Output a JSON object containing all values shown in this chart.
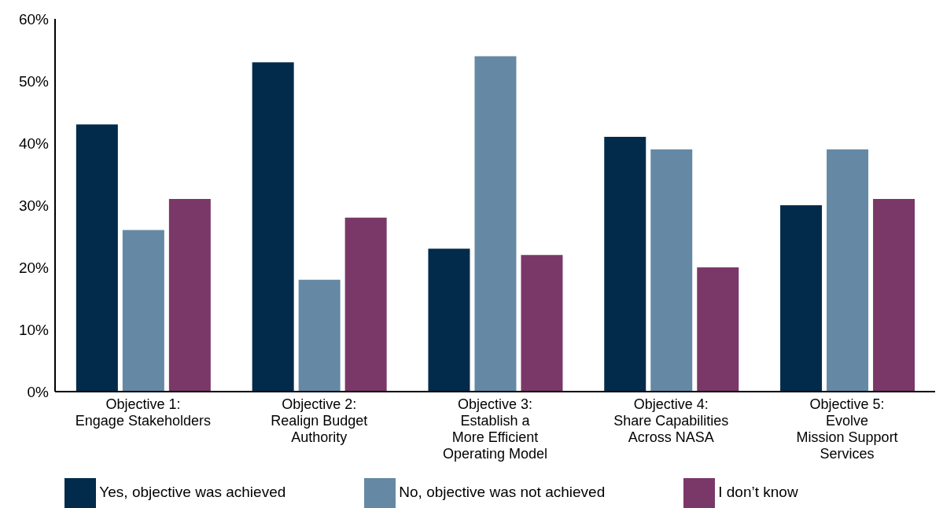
{
  "chart_data": {
    "type": "bar",
    "categories": [
      "Objective 1:\nEngage Stakeholders",
      "Objective 2:\nRealign Budget\nAuthority",
      "Objective 3:\nEstablish a\nMore Efficient\nOperating Model",
      "Objective 4:\nShare Capabilities\nAcross NASA",
      "Objective 5:\nEvolve\nMission Support\nServices"
    ],
    "series": [
      {
        "name": "Yes, objective was achieved",
        "color": "#022b4b",
        "values": [
          43,
          53,
          23,
          41,
          30
        ]
      },
      {
        "name": "No, objective was not achieved",
        "color": "#6589a4",
        "values": [
          26,
          18,
          54,
          39,
          39
        ]
      },
      {
        "name": "I don’t know",
        "color": "#7a3868",
        "values": [
          31,
          28,
          22,
          20,
          31
        ]
      }
    ],
    "ylim": [
      0,
      60
    ],
    "yticks": [
      {
        "value": 0,
        "label": "0%"
      },
      {
        "value": 10,
        "label": "10%"
      },
      {
        "value": 20,
        "label": "20%"
      },
      {
        "value": 30,
        "label": "30%"
      },
      {
        "value": 40,
        "label": "40%"
      },
      {
        "value": 50,
        "label": "50%"
      },
      {
        "value": 60,
        "label": "60%"
      }
    ],
    "grid": false,
    "legend": "bottom"
  }
}
